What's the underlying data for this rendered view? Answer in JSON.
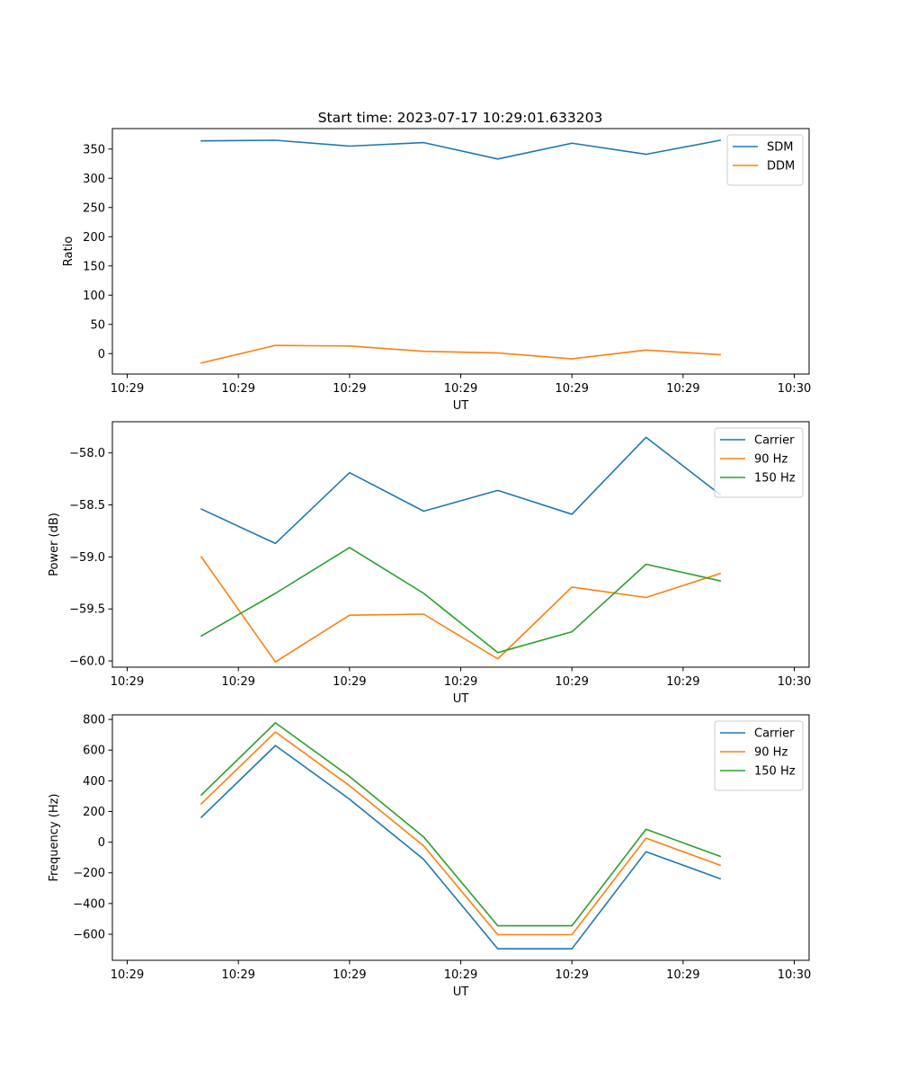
{
  "figure_title": "Start time: 2023-07-17 10:29:01.633203",
  "chart_data": [
    {
      "type": "line",
      "title": "Start time: 2023-07-17 10:29:01.633203",
      "xlabel": "UT",
      "ylabel": "Ratio",
      "x": [
        1,
        2,
        3,
        4,
        5,
        6,
        7,
        8
      ],
      "xlim": [
        -0.2,
        9.2
      ],
      "xticks": [
        0,
        1.5,
        3,
        4.5,
        6,
        7.5,
        9
      ],
      "xtick_labels": [
        "10:29",
        "10:29",
        "10:29",
        "10:29",
        "10:29",
        "10:29",
        "10:30"
      ],
      "ylim": [
        -35,
        385
      ],
      "yticks": [
        0,
        50,
        100,
        150,
        200,
        250,
        300,
        350
      ],
      "ytick_labels": [
        "0",
        "50",
        "100",
        "150",
        "200",
        "250",
        "300",
        "350"
      ],
      "legend_position": "top-right",
      "series": [
        {
          "name": "SDM",
          "color": "#1f77b4",
          "values": [
            364,
            365,
            355,
            361,
            333,
            360,
            341,
            365
          ]
        },
        {
          "name": "DDM",
          "color": "#ff7f0e",
          "values": [
            -16,
            14,
            13,
            4,
            1,
            -9,
            6,
            -2
          ]
        }
      ]
    },
    {
      "type": "line",
      "title": "",
      "xlabel": "UT",
      "ylabel": "Power (dB)",
      "x": [
        1,
        2,
        3,
        4,
        5,
        6,
        7,
        8
      ],
      "xlim": [
        -0.2,
        9.2
      ],
      "xticks": [
        0,
        1.5,
        3,
        4.5,
        6,
        7.5,
        9
      ],
      "xtick_labels": [
        "10:29",
        "10:29",
        "10:29",
        "10:29",
        "10:29",
        "10:29",
        "10:30"
      ],
      "ylim": [
        -60.06,
        -57.7
      ],
      "yticks": [
        -60.0,
        -59.5,
        -59.0,
        -58.5,
        -58.0
      ],
      "ytick_labels": [
        "−60.0",
        "−59.5",
        "−59.0",
        "−58.5",
        "−58.0"
      ],
      "legend_position": "top-right",
      "series": [
        {
          "name": "Carrier",
          "color": "#1f77b4",
          "values": [
            -58.54,
            -58.87,
            -58.19,
            -58.56,
            -58.36,
            -58.59,
            -57.85,
            -58.4
          ]
        },
        {
          "name": "90 Hz",
          "color": "#ff7f0e",
          "values": [
            -59.0,
            -60.01,
            -59.56,
            -59.55,
            -59.98,
            -59.29,
            -59.39,
            -59.16
          ]
        },
        {
          "name": "150 Hz",
          "color": "#2ca02c",
          "values": [
            -59.76,
            -59.35,
            -58.91,
            -59.35,
            -59.92,
            -59.72,
            -59.07,
            -59.23
          ]
        }
      ]
    },
    {
      "type": "line",
      "title": "",
      "xlabel": "UT",
      "ylabel": "Frequency (Hz)",
      "x": [
        1,
        2,
        3,
        4,
        5,
        6,
        7,
        8
      ],
      "xlim": [
        -0.2,
        9.2
      ],
      "xticks": [
        0,
        1.5,
        3,
        4.5,
        6,
        7.5,
        9
      ],
      "xtick_labels": [
        "10:29",
        "10:29",
        "10:29",
        "10:29",
        "10:29",
        "10:29",
        "10:30"
      ],
      "ylim": [
        -770,
        830
      ],
      "yticks": [
        -600,
        -400,
        -200,
        0,
        200,
        400,
        600,
        800
      ],
      "ytick_labels": [
        "−600",
        "−400",
        "−200",
        "0",
        "200",
        "400",
        "600",
        "800"
      ],
      "legend_position": "top-right",
      "series": [
        {
          "name": "Carrier",
          "color": "#1f77b4",
          "values": [
            162,
            630,
            280,
            -112,
            -695,
            -695,
            -62,
            -238
          ]
        },
        {
          "name": "90 Hz",
          "color": "#ff7f0e",
          "values": [
            250,
            718,
            368,
            -24,
            -603,
            -603,
            26,
            -150
          ]
        },
        {
          "name": "150 Hz",
          "color": "#2ca02c",
          "values": [
            308,
            778,
            428,
            34,
            -545,
            -545,
            84,
            -92
          ]
        }
      ]
    }
  ]
}
